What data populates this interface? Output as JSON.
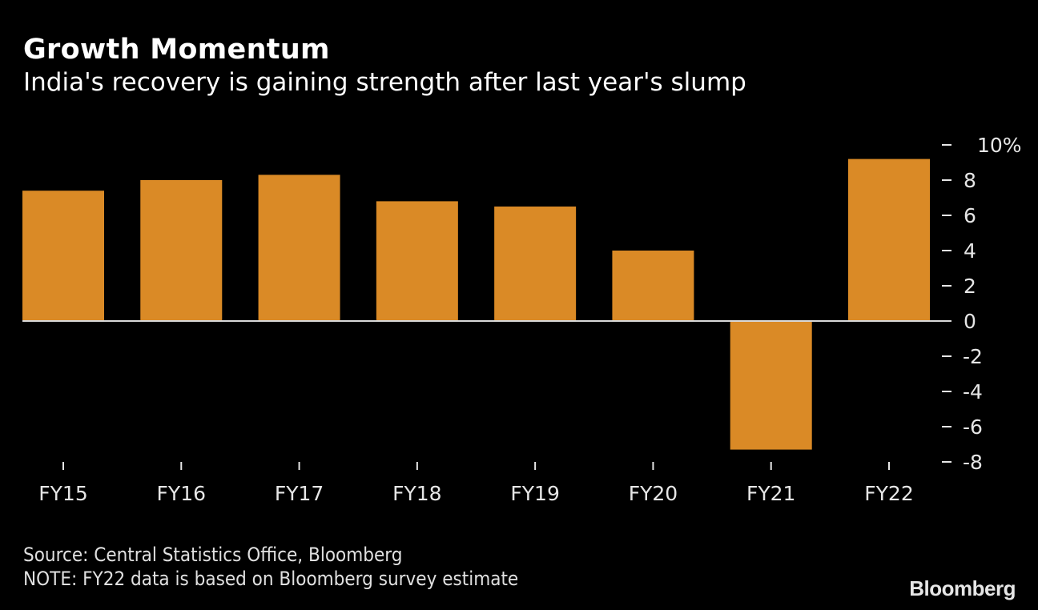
{
  "header": {
    "title": "Growth Momentum",
    "subtitle": "India's recovery is gaining strength after last year's slump"
  },
  "footer": {
    "source": "Source: Central Statistics Office, Bloomberg",
    "note": "NOTE: FY22 data is based on Bloomberg survey estimate",
    "logo": "Bloomberg"
  },
  "colors": {
    "background": "#000000",
    "bar": "#DA8A26",
    "zero_line": "#d9d9d9",
    "text": "#ffffff"
  },
  "chart_data": {
    "type": "bar",
    "title": "Growth Momentum",
    "subtitle": "India's recovery is gaining strength after last year's slump",
    "xlabel": "",
    "ylabel": "",
    "categories": [
      "FY15",
      "FY16",
      "FY17",
      "FY18",
      "FY19",
      "FY20",
      "FY21",
      "FY22"
    ],
    "values": [
      7.4,
      8.0,
      8.3,
      6.8,
      6.5,
      4.0,
      -7.3,
      9.2
    ],
    "ylim": [
      -8,
      10
    ],
    "yticks": [
      10,
      8,
      6,
      4,
      2,
      0,
      -2,
      -4,
      -6,
      -8
    ],
    "ytick_labels": [
      "10%",
      "8",
      "6",
      "4",
      "2",
      "0",
      "-2",
      "-4",
      "-6",
      "-8"
    ],
    "y_axis_position": "right",
    "grid": false,
    "legend": "none"
  }
}
